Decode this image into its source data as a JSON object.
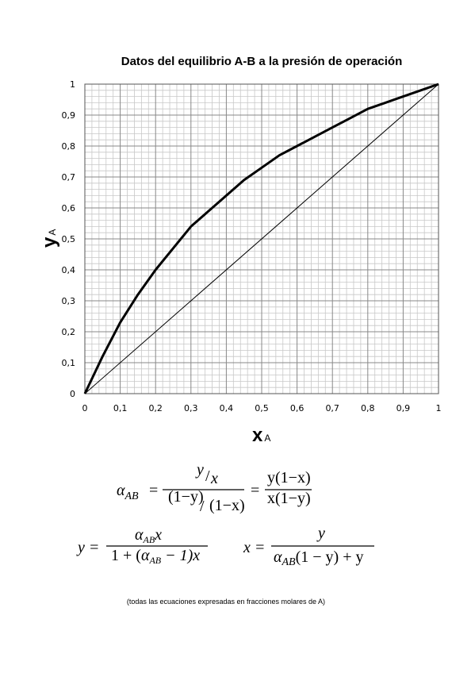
{
  "chart_data": {
    "type": "line",
    "title": "Datos del equilibrio A-B a la presión de operación",
    "xlabel": "x",
    "xlabel_sub": "A",
    "ylabel": "y",
    "ylabel_sub": "A",
    "xlim": [
      0,
      1
    ],
    "ylim": [
      0,
      1
    ],
    "xticks": [
      0,
      {
        "value": 0.1,
        "label": "0,1"
      },
      {
        "value": 0.2,
        "label": "0,2"
      },
      {
        "value": 0.3,
        "label": "0,3"
      },
      {
        "value": 0.4,
        "label": "0,4"
      },
      {
        "value": 0.5,
        "label": "0,5"
      },
      {
        "value": 0.6,
        "label": "0,6"
      },
      {
        "value": 0.7,
        "label": "0,7"
      },
      {
        "value": 0.8,
        "label": "0,8"
      },
      {
        "value": 0.9,
        "label": "0,9"
      },
      1
    ],
    "yticks": [
      0,
      {
        "value": 0.1,
        "label": "0,1"
      },
      {
        "value": 0.2,
        "label": "0,2"
      },
      {
        "value": 0.3,
        "label": "0,3"
      },
      {
        "value": 0.4,
        "label": "0,4"
      },
      {
        "value": 0.5,
        "label": "0,5"
      },
      {
        "value": 0.6,
        "label": "0,6"
      },
      {
        "value": 0.7,
        "label": "0,7"
      },
      {
        "value": 0.8,
        "label": "0,8"
      },
      {
        "value": 0.9,
        "label": "0,9"
      },
      1
    ],
    "grid": true,
    "series": [
      {
        "color": "#000000",
        "width": 3,
        "x": [
          0,
          0.05,
          0.1,
          0.15,
          0.2,
          0.25,
          0.3,
          0.35,
          0.4,
          0.45,
          0.5,
          0.55,
          0.6,
          0.65,
          0.7,
          0.75,
          0.8,
          0.85,
          0.9,
          0.95,
          1
        ],
        "values": [
          0,
          0.12,
          0.23,
          0.32,
          0.4,
          0.47,
          0.54,
          0.59,
          0.64,
          0.69,
          0.73,
          0.77,
          0.8,
          0.83,
          0.86,
          0.89,
          0.92,
          0.94,
          0.96,
          0.98,
          1
        ]
      },
      {
        "color": "#000000",
        "width": 1,
        "x": [
          0,
          1
        ],
        "values": [
          0,
          1
        ]
      }
    ]
  },
  "equations": {
    "e1": {
      "a": "α",
      "a_sub": "AB",
      "eq": "=",
      "n_num": "y",
      "n_slash": "/",
      "n_den": "x",
      "d_num": "(1−y)",
      "d_slash": "/",
      "d_den": "(1−x)",
      "eq2": "=",
      "num2": "y(1−x)",
      "den2": "x(1−y)"
    },
    "e2": {
      "lhs": "y =",
      "num_a": "α",
      "num_sub": "AB",
      "num_x": "x",
      "den_1": "1 + (",
      "den_a": "α",
      "den_sub": "AB",
      "den_2": " − 1)x"
    },
    "e3": {
      "lhs": "x =",
      "num": "y",
      "den_a": "α",
      "den_sub": "AB",
      "den_2": "(1 − y) + y"
    },
    "note": "(todas las ecuaciones expresadas en fracciones molares de A)"
  }
}
